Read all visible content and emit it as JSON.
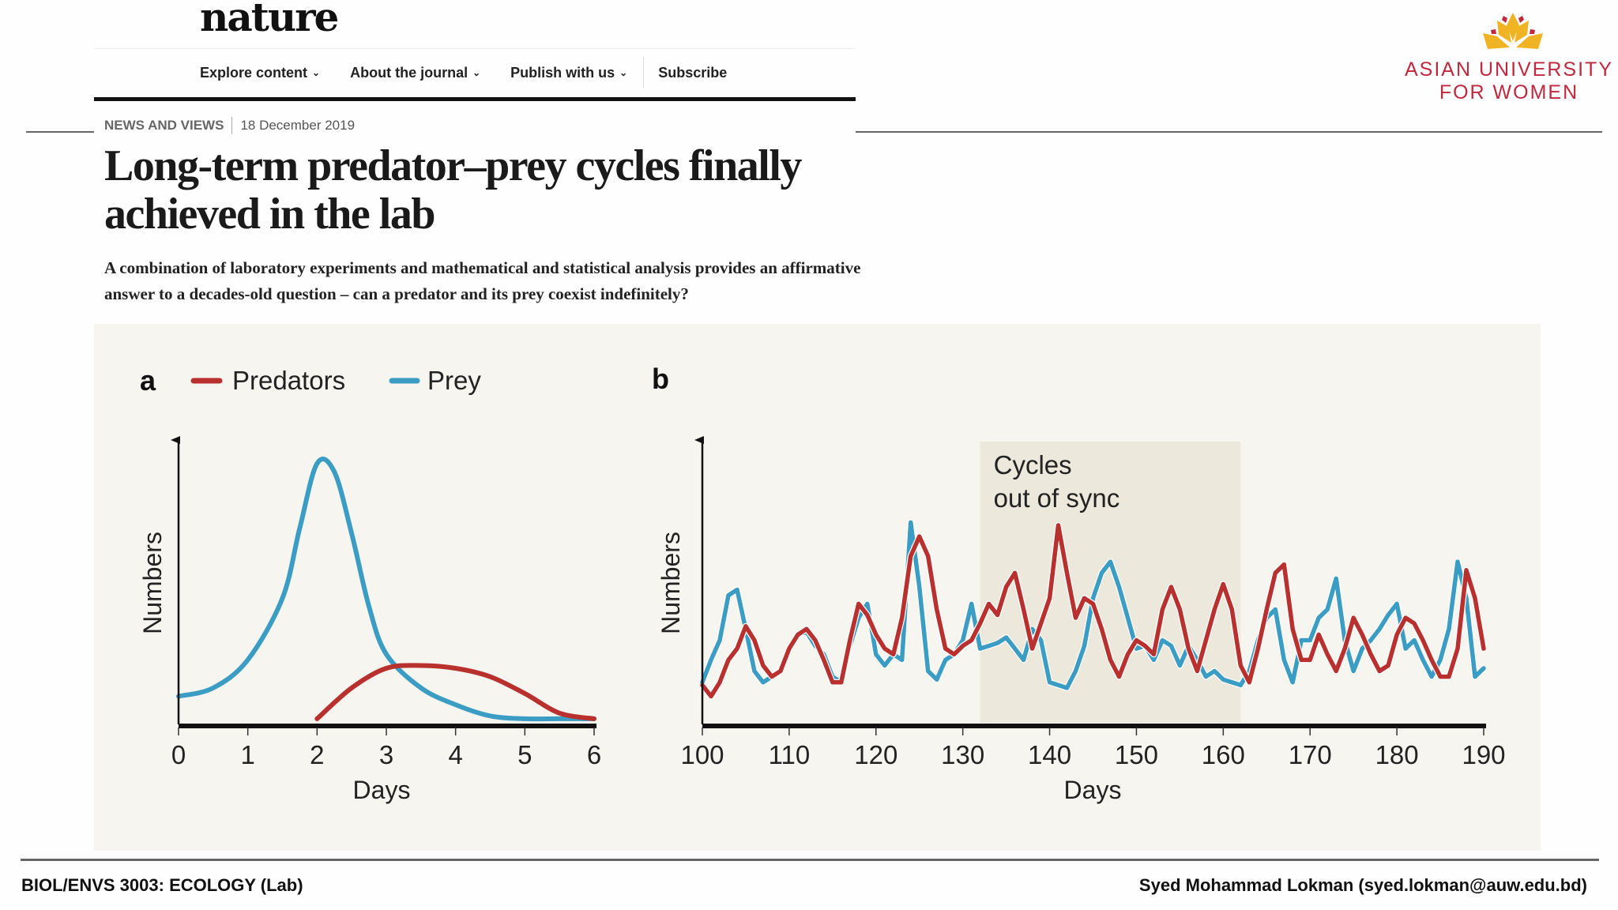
{
  "header": {
    "journal_logo": "nature",
    "nav": [
      {
        "label": "Explore content",
        "has_dropdown": true
      },
      {
        "label": "About the journal",
        "has_dropdown": true
      },
      {
        "label": "Publish with us",
        "has_dropdown": true
      },
      {
        "label": "Subscribe",
        "has_dropdown": false
      }
    ]
  },
  "institution_logo": {
    "line1": "ASIAN UNIVERSITY",
    "line2": "FOR WOMEN",
    "color": "#c0283e",
    "petal_color": "#f0b323"
  },
  "article": {
    "section": "NEWS AND VIEWS",
    "date": "18 December 2019",
    "title": "Long-term predator–prey cycles finally achieved in the lab",
    "standfirst": "A combination of laboratory experiments and mathematical and statistical analysis provides an affirmative answer to a decades-old question – can a predator and its prey coexist indefinitely?"
  },
  "figure": {
    "legend": [
      {
        "name": "Predators",
        "color": "#b8312f"
      },
      {
        "name": "Prey",
        "color": "#3b9cc4"
      }
    ]
  },
  "chart_data": [
    {
      "panel": "a",
      "type": "line",
      "xlabel": "Days",
      "ylabel": "Numbers",
      "xlim": [
        0,
        6
      ],
      "ylim": [
        0,
        100
      ],
      "xticks": [
        "0",
        "1",
        "2",
        "3",
        "4",
        "5",
        "6"
      ],
      "smooth": true,
      "series": [
        {
          "name": "Prey",
          "color": "#3b9cc4",
          "x": [
            0,
            0.5,
            1,
            1.5,
            1.75,
            2,
            2.25,
            2.5,
            2.75,
            3,
            3.5,
            4,
            4.5,
            5,
            5.5,
            6
          ],
          "y": [
            10,
            13,
            23,
            45,
            70,
            93,
            90,
            68,
            42,
            25,
            13,
            7,
            3,
            2,
            2,
            2
          ]
        },
        {
          "name": "Predators",
          "color": "#b8312f",
          "x": [
            2,
            2.5,
            3,
            3.5,
            4,
            4.5,
            5,
            5.5,
            6
          ],
          "y": [
            2,
            13,
            20,
            21,
            20,
            17,
            11,
            4,
            2
          ]
        }
      ]
    },
    {
      "panel": "b",
      "type": "line",
      "xlabel": "Days",
      "ylabel": "Numbers",
      "xlim": [
        100,
        190
      ],
      "ylim": [
        0,
        100
      ],
      "xticks": [
        "100",
        "110",
        "120",
        "130",
        "140",
        "150",
        "160",
        "170",
        "180",
        "190"
      ],
      "annotation": {
        "text_line1": "Cycles",
        "text_line2": "out of sync",
        "x_range": [
          132,
          162
        ]
      },
      "x_start": 100,
      "x_step": 1,
      "series": [
        {
          "name": "Prey",
          "color": "#3b9cc4",
          "y": [
            15,
            23,
            30,
            46,
            48,
            34,
            19,
            15,
            17,
            19,
            27,
            32,
            33,
            28,
            25,
            17,
            15,
            28,
            38,
            43,
            25,
            21,
            25,
            23,
            72,
            49,
            19,
            16,
            23,
            25,
            30,
            43,
            27,
            28,
            29,
            31,
            27,
            23,
            34,
            30,
            15,
            14,
            13,
            19,
            28,
            45,
            54,
            58,
            49,
            38,
            27,
            28,
            23,
            30,
            28,
            21,
            28,
            23,
            17,
            19,
            16,
            15,
            14,
            19,
            30,
            38,
            41,
            23,
            15,
            30,
            30,
            38,
            41,
            52,
            30,
            19,
            27,
            30,
            34,
            39,
            43,
            27,
            30,
            23,
            17,
            23,
            34,
            58,
            45,
            17,
            20
          ]
        },
        {
          "name": "Predators",
          "color": "#b8312f",
          "y": [
            14,
            10,
            15,
            23,
            27,
            35,
            30,
            21,
            17,
            19,
            27,
            32,
            34,
            30,
            23,
            15,
            15,
            30,
            43,
            39,
            32,
            27,
            25,
            38,
            60,
            67,
            60,
            41,
            27,
            25,
            28,
            30,
            36,
            43,
            39,
            49,
            54,
            41,
            27,
            36,
            45,
            71,
            54,
            38,
            45,
            43,
            34,
            23,
            17,
            25,
            30,
            28,
            25,
            41,
            49,
            41,
            27,
            19,
            30,
            41,
            50,
            41,
            21,
            15,
            27,
            41,
            54,
            57,
            34,
            23,
            23,
            32,
            25,
            19,
            27,
            38,
            32,
            25,
            19,
            21,
            32,
            38,
            36,
            30,
            23,
            17,
            17,
            27,
            55,
            45,
            27
          ]
        }
      ]
    }
  ],
  "footer": {
    "course": "BIOL/ENVS 3003: ECOLOGY (Lab)",
    "author": "Syed Mohammad Lokman (syed.lokman@auw.edu.bd)"
  }
}
